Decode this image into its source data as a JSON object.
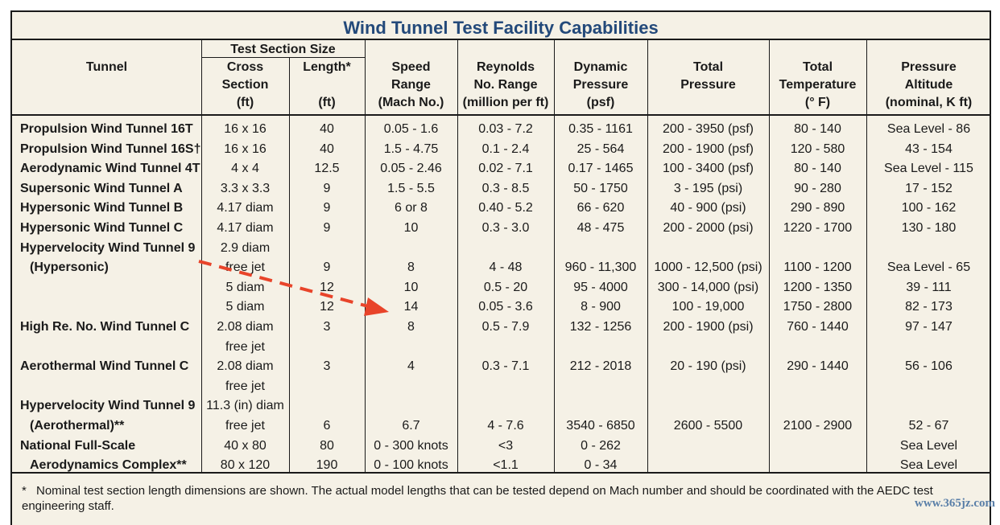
{
  "title": "Wind Tunnel Test Facility Capabilities",
  "headers": {
    "tunnel": "Tunnel",
    "test_section_size": "Test Section Size",
    "cross_section": [
      "Cross",
      "Section",
      "(ft)"
    ],
    "length": [
      "Length*",
      "",
      "(ft)"
    ],
    "speed_range": [
      "Speed",
      "Range",
      "(Mach No.)"
    ],
    "reynolds": [
      "Reynolds",
      "No. Range",
      "(million per ft)"
    ],
    "dynamic_pressure": [
      "Dynamic",
      "Pressure",
      "(psf)"
    ],
    "total_pressure": [
      "Total",
      "Pressure"
    ],
    "total_temperature": [
      "Total",
      "Temperature",
      "(° F)"
    ],
    "pressure_altitude": [
      "Pressure",
      "Altitude",
      "(nominal, K ft)"
    ]
  },
  "rows": [
    {
      "name": "Propulsion Wind Tunnel 16T",
      "cross": "16  x 16",
      "length": "40",
      "speed": "0.05 - 1.6",
      "reynolds": "0.03 - 7.2",
      "dyn": "0.35 - 1161",
      "totp": "200 - 3950 (psf)",
      "temp": "80 - 140",
      "alt": "Sea Level - 86"
    },
    {
      "name": "Propulsion Wind Tunnel 16S†",
      "cross": "16 x 16",
      "length": "40",
      "speed": "1.5 - 4.75",
      "reynolds": "0.1 - 2.4",
      "dyn": "25 - 564",
      "totp": "200 - 1900 (psf)",
      "temp": "120 - 580",
      "alt": "43 - 154"
    },
    {
      "name": "Aerodynamic Wind Tunnel 4T",
      "cross": "4 x 4",
      "length": "12.5",
      "speed": "0.05 - 2.46",
      "reynolds": "0.02 - 7.1",
      "dyn": "0.17 - 1465",
      "totp": "100 - 3400 (psf)",
      "temp": "80 - 140",
      "alt": "Sea Level - 115"
    },
    {
      "name": "Supersonic Wind Tunnel A",
      "cross": "3.3 x 3.3",
      "length": "9",
      "speed": "1.5 - 5.5",
      "reynolds": "0.3 - 8.5",
      "dyn": "50 - 1750",
      "totp": "3 - 195 (psi)",
      "temp": "90 - 280",
      "alt": "17 - 152"
    },
    {
      "name": "Hypersonic Wind Tunnel B",
      "cross": "4.17 diam",
      "length": "9",
      "speed": "6 or 8",
      "reynolds": "0.40 - 5.2",
      "dyn": "66 - 620",
      "totp": "40 - 900 (psi)",
      "temp": "290 - 890",
      "alt": "100 - 162"
    },
    {
      "name": "Hypersonic Wind Tunnel C",
      "cross": "4.17 diam",
      "length": "9",
      "speed": "10",
      "reynolds": "0.3 - 3.0",
      "dyn": "48 - 475",
      "totp": "200 - 2000 (psi)",
      "temp": "1220 - 1700",
      "alt": "130 - 180"
    },
    {
      "name": "Hypervelocity Wind Tunnel 9",
      "cross": "2.9 diam",
      "length": "",
      "speed": "",
      "reynolds": "",
      "dyn": "",
      "totp": "",
      "temp": "",
      "alt": ""
    },
    {
      "name": "(Hypersonic)",
      "cross": "free jet",
      "length": "9",
      "speed": "8",
      "reynolds": "4 - 48",
      "dyn": "960 - 11,300",
      "totp": "1000 - 12,500 (psi)",
      "temp": "1100 - 1200",
      "alt": "Sea Level - 65"
    },
    {
      "name": "",
      "cross": "5 diam",
      "length": "12",
      "speed": "10",
      "reynolds": "0.5 - 20",
      "dyn": "95 - 4000",
      "totp": "300 - 14,000 (psi)",
      "temp": "1200 - 1350",
      "alt": "39 - 111"
    },
    {
      "name": "",
      "cross": "5 diam",
      "length": "12",
      "speed": "14",
      "reynolds": "0.05 - 3.6",
      "dyn": "8 - 900",
      "totp": "100 - 19,000",
      "temp": "1750 - 2800",
      "alt": "82 - 173"
    },
    {
      "name": "High Re. No. Wind Tunnel C",
      "cross": "2.08 diam",
      "length": "3",
      "speed": "8",
      "reynolds": "0.5 - 7.9",
      "dyn": "132 - 1256",
      "totp": "200 - 1900 (psi)",
      "temp": "760 - 1440",
      "alt": "97 - 147"
    },
    {
      "name": "",
      "cross": "free jet",
      "length": "",
      "speed": "",
      "reynolds": "",
      "dyn": "",
      "totp": "",
      "temp": "",
      "alt": ""
    },
    {
      "name": "Aerothermal Wind Tunnel C",
      "cross": "2.08 diam",
      "length": "3",
      "speed": "4",
      "reynolds": "0.3 - 7.1",
      "dyn": "212 - 2018",
      "totp": "20 - 190 (psi)",
      "temp": "290 - 1440",
      "alt": "56 - 106"
    },
    {
      "name": "",
      "cross": "free jet",
      "length": "",
      "speed": "",
      "reynolds": "",
      "dyn": "",
      "totp": "",
      "temp": "",
      "alt": ""
    },
    {
      "name": "Hypervelocity Wind Tunnel 9",
      "cross": "11.3 (in) diam",
      "length": "",
      "speed": "",
      "reynolds": "",
      "dyn": "",
      "totp": "",
      "temp": "",
      "alt": ""
    },
    {
      "name": "(Aerothermal)**",
      "cross": "free jet",
      "length": "6",
      "speed": "6.7",
      "reynolds": "4 - 7.6",
      "dyn": "3540 - 6850",
      "totp": "2600 - 5500",
      "temp": "2100 - 2900",
      "alt": "52 - 67"
    },
    {
      "name": "National Full-Scale",
      "cross": "40 x 80",
      "length": "80",
      "speed": "0 - 300 knots",
      "reynolds": "<3",
      "dyn": "0 - 262",
      "totp": "",
      "temp": "",
      "alt": "Sea Level"
    },
    {
      "name": "Aerodynamics Complex**",
      "cross": "80 x 120",
      "length": "190",
      "speed": "0 - 100 knots",
      "reynolds": "<1.1",
      "dyn": "0 - 34",
      "totp": "",
      "temp": "",
      "alt": "Sea Level"
    }
  ],
  "footnote_marker": "*",
  "footnote": "Nominal test section length dimensions are shown. The actual model lengths that can be tested depend on Mach number and should be coordinated with the AEDC test engineering staff.",
  "watermark": "www.365jz.com",
  "colors": {
    "title": "#23497a",
    "arrow": "#e8442a",
    "background": "#f5f1e6"
  }
}
